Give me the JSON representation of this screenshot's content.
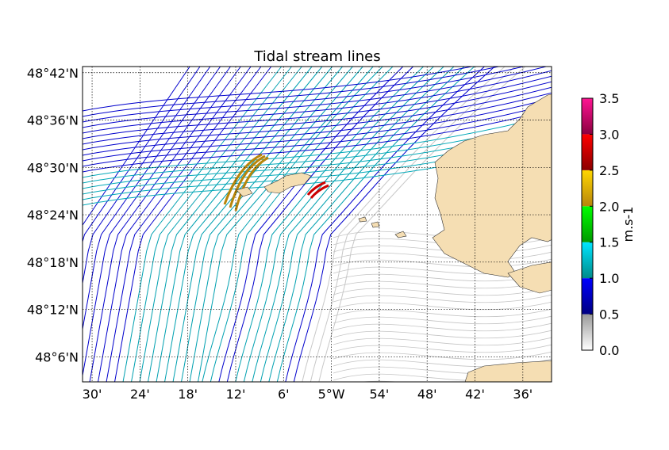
{
  "chart_data": {
    "type": "streamplot",
    "title": "Tidal stream lines",
    "xlabel": "",
    "ylabel": "",
    "x_ticks": [
      "30'",
      "24'",
      "18'",
      "12'",
      "6'",
      "5°W",
      "54'",
      "48'",
      "42'",
      "36'"
    ],
    "x_tick_values": [
      -5.5,
      -5.4,
      -5.3,
      -5.2,
      -5.1,
      -5.0,
      -4.9,
      -4.8,
      -4.7,
      -4.6
    ],
    "y_ticks": [
      "48°42'N",
      "48°36'N",
      "48°30'N",
      "48°24'N",
      "48°18'N",
      "48°12'N",
      "48°6'N"
    ],
    "y_tick_values": [
      48.7,
      48.6,
      48.5,
      48.4,
      48.3,
      48.2,
      48.1
    ],
    "xlim": [
      -5.52,
      -4.54
    ],
    "ylim": [
      48.047,
      48.713
    ],
    "grid": true,
    "grid_style": "dotted",
    "land_color": "#f5deb3",
    "colorbar": {
      "label": "m.s-1",
      "ticks": [
        "0.0",
        "0.5",
        "1.0",
        "1.5",
        "2.0",
        "2.5",
        "3.0",
        "3.5"
      ],
      "range": [
        0.0,
        3.5
      ],
      "segments": [
        {
          "from": 0.0,
          "to": 0.5,
          "color_top": "#9a9a9a",
          "color_bottom": "#ffffff"
        },
        {
          "from": 0.5,
          "to": 1.0,
          "color_top": "#0000ff",
          "color_bottom": "#000080"
        },
        {
          "from": 1.0,
          "to": 1.5,
          "color_top": "#00e5ff",
          "color_bottom": "#008b8b"
        },
        {
          "from": 1.5,
          "to": 2.0,
          "color_top": "#00ff00",
          "color_bottom": "#009900"
        },
        {
          "from": 2.0,
          "to": 2.5,
          "color_top": "#ffd700",
          "color_bottom": "#b8860b"
        },
        {
          "from": 2.5,
          "to": 3.0,
          "color_top": "#ff0000",
          "color_bottom": "#8b0000"
        },
        {
          "from": 3.0,
          "to": 3.5,
          "color_top": "#ff1493",
          "color_bottom": "#8b0040"
        }
      ]
    }
  }
}
